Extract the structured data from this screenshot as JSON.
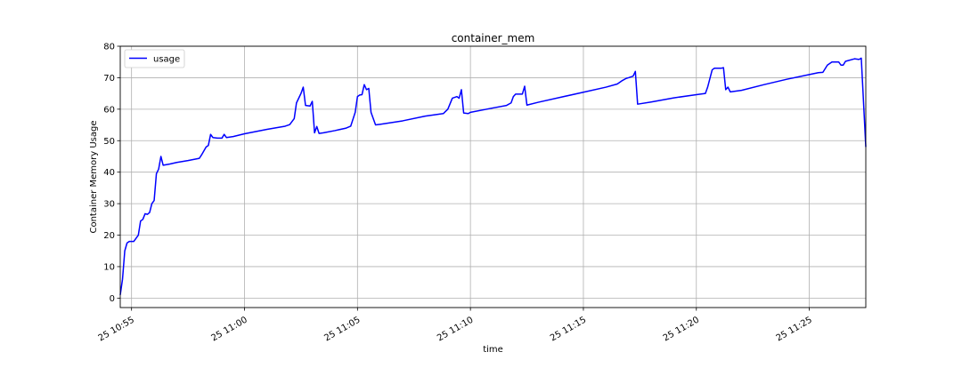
{
  "chart_data": {
    "type": "line",
    "title": "container_mem",
    "xlabel": "time",
    "ylabel": "Container Memory Usage",
    "ylim": [
      -3,
      80
    ],
    "yticks": [
      0,
      10,
      20,
      30,
      40,
      50,
      60,
      70,
      80
    ],
    "xlim": [
      "25 10:54:30",
      "25 11:27:30"
    ],
    "xticks": [
      {
        "t": "25 10:55:00",
        "label": "25 10:55"
      },
      {
        "t": "25 11:00:00",
        "label": "25 11:00"
      },
      {
        "t": "25 11:05:00",
        "label": "25 11:05"
      },
      {
        "t": "25 11:10:00",
        "label": "25 11:10"
      },
      {
        "t": "25 11:15:00",
        "label": "25 11:15"
      },
      {
        "t": "25 11:20:00",
        "label": "25 11:20"
      },
      {
        "t": "25 11:25:00",
        "label": "25 11:25"
      }
    ],
    "grid": true,
    "legend_position": "top-left",
    "series": [
      {
        "name": "usage",
        "color": "#0000ff",
        "points": [
          [
            "25 10:54:30",
            1
          ],
          [
            "25 10:54:36",
            6
          ],
          [
            "25 10:54:42",
            15
          ],
          [
            "25 10:54:48",
            17.5
          ],
          [
            "25 10:54:54",
            18
          ],
          [
            "25 10:55:06",
            18
          ],
          [
            "25 10:55:12",
            19
          ],
          [
            "25 10:55:18",
            20
          ],
          [
            "25 10:55:24",
            24.5
          ],
          [
            "25 10:55:30",
            25
          ],
          [
            "25 10:55:36",
            26.8
          ],
          [
            "25 10:55:42",
            26.6
          ],
          [
            "25 10:55:48",
            27.2
          ],
          [
            "25 10:55:54",
            30
          ],
          [
            "25 10:56:00",
            31
          ],
          [
            "25 10:56:06",
            39.5
          ],
          [
            "25 10:56:12",
            41
          ],
          [
            "25 10:56:18",
            45
          ],
          [
            "25 10:56:24",
            42.2
          ],
          [
            "25 10:56:42",
            42.6
          ],
          [
            "25 10:57:00",
            43.1
          ],
          [
            "25 10:57:30",
            43.7
          ],
          [
            "25 10:58:00",
            44.4
          ],
          [
            "25 10:58:06",
            45.5
          ],
          [
            "25 10:58:18",
            48
          ],
          [
            "25 10:58:24",
            48.5
          ],
          [
            "25 10:58:30",
            52
          ],
          [
            "25 10:58:36",
            51
          ],
          [
            "25 10:58:48",
            50.8
          ],
          [
            "25 10:59:00",
            50.8
          ],
          [
            "25 10:59:06",
            52
          ],
          [
            "25 10:59:12",
            51
          ],
          [
            "25 10:59:30",
            51.3
          ],
          [
            "25 11:00:00",
            52.2
          ],
          [
            "25 11:01:00",
            53.6
          ],
          [
            "25 11:01:48",
            54.6
          ],
          [
            "25 11:02:00",
            55.1
          ],
          [
            "25 11:02:12",
            57
          ],
          [
            "25 11:02:18",
            62
          ],
          [
            "25 11:02:30",
            65
          ],
          [
            "25 11:02:36",
            67
          ],
          [
            "25 11:02:42",
            61.2
          ],
          [
            "25 11:02:54",
            61
          ],
          [
            "25 11:03:00",
            62.5
          ],
          [
            "25 11:03:06",
            52.5
          ],
          [
            "25 11:03:12",
            54.5
          ],
          [
            "25 11:03:18",
            52.3
          ],
          [
            "25 11:03:30",
            52.5
          ],
          [
            "25 11:04:00",
            53.2
          ],
          [
            "25 11:04:30",
            54
          ],
          [
            "25 11:04:42",
            54.6
          ],
          [
            "25 11:04:54",
            59
          ],
          [
            "25 11:05:00",
            64
          ],
          [
            "25 11:05:06",
            64.5
          ],
          [
            "25 11:05:12",
            64.6
          ],
          [
            "25 11:05:18",
            67.8
          ],
          [
            "25 11:05:24",
            66.2
          ],
          [
            "25 11:05:30",
            66.6
          ],
          [
            "25 11:05:36",
            59
          ],
          [
            "25 11:05:48",
            55
          ],
          [
            "25 11:06:00",
            55.2
          ],
          [
            "25 11:07:00",
            56.3
          ],
          [
            "25 11:08:00",
            57.8
          ],
          [
            "25 11:08:48",
            58.6
          ],
          [
            "25 11:09:00",
            60
          ],
          [
            "25 11:09:12",
            63.5
          ],
          [
            "25 11:09:24",
            64
          ],
          [
            "25 11:09:30",
            63.5
          ],
          [
            "25 11:09:36",
            66.2
          ],
          [
            "25 11:09:42",
            58.8
          ],
          [
            "25 11:09:54",
            58.6
          ],
          [
            "25 11:10:00",
            59
          ],
          [
            "25 11:11:00",
            60.4
          ],
          [
            "25 11:11:36",
            61.2
          ],
          [
            "25 11:11:48",
            62
          ],
          [
            "25 11:11:54",
            64
          ],
          [
            "25 11:12:00",
            64.8
          ],
          [
            "25 11:12:18",
            64.8
          ],
          [
            "25 11:12:24",
            67.3
          ],
          [
            "25 11:12:30",
            61.3
          ],
          [
            "25 11:13:00",
            62.2
          ],
          [
            "25 11:14:00",
            63.8
          ],
          [
            "25 11:15:00",
            65.4
          ],
          [
            "25 11:16:00",
            67
          ],
          [
            "25 11:16:30",
            68
          ],
          [
            "25 11:16:42",
            69
          ],
          [
            "25 11:16:54",
            69.8
          ],
          [
            "25 11:17:00",
            70
          ],
          [
            "25 11:17:12",
            70.5
          ],
          [
            "25 11:17:18",
            72
          ],
          [
            "25 11:17:24",
            61.6
          ],
          [
            "25 11:18:00",
            62.3
          ],
          [
            "25 11:19:00",
            63.6
          ],
          [
            "25 11:20:00",
            64.6
          ],
          [
            "25 11:20:24",
            65
          ],
          [
            "25 11:20:30",
            67
          ],
          [
            "25 11:20:42",
            72.5
          ],
          [
            "25 11:20:48",
            73
          ],
          [
            "25 11:21:06",
            73
          ],
          [
            "25 11:21:12",
            73.2
          ],
          [
            "25 11:21:18",
            66.2
          ],
          [
            "25 11:21:24",
            67
          ],
          [
            "25 11:21:30",
            65.5
          ],
          [
            "25 11:22:00",
            66
          ],
          [
            "25 11:23:00",
            67.8
          ],
          [
            "25 11:24:00",
            69.5
          ],
          [
            "25 11:25:00",
            71
          ],
          [
            "25 11:25:24",
            71.6
          ],
          [
            "25 11:25:36",
            71.7
          ],
          [
            "25 11:25:48",
            74
          ],
          [
            "25 11:26:00",
            75
          ],
          [
            "25 11:26:18",
            75
          ],
          [
            "25 11:26:24",
            74
          ],
          [
            "25 11:26:30",
            74
          ],
          [
            "25 11:26:36",
            75.2
          ],
          [
            "25 11:27:00",
            76
          ],
          [
            "25 11:27:12",
            75.8
          ],
          [
            "25 11:27:18",
            76.2
          ],
          [
            "25 11:27:30",
            48
          ]
        ]
      }
    ]
  }
}
